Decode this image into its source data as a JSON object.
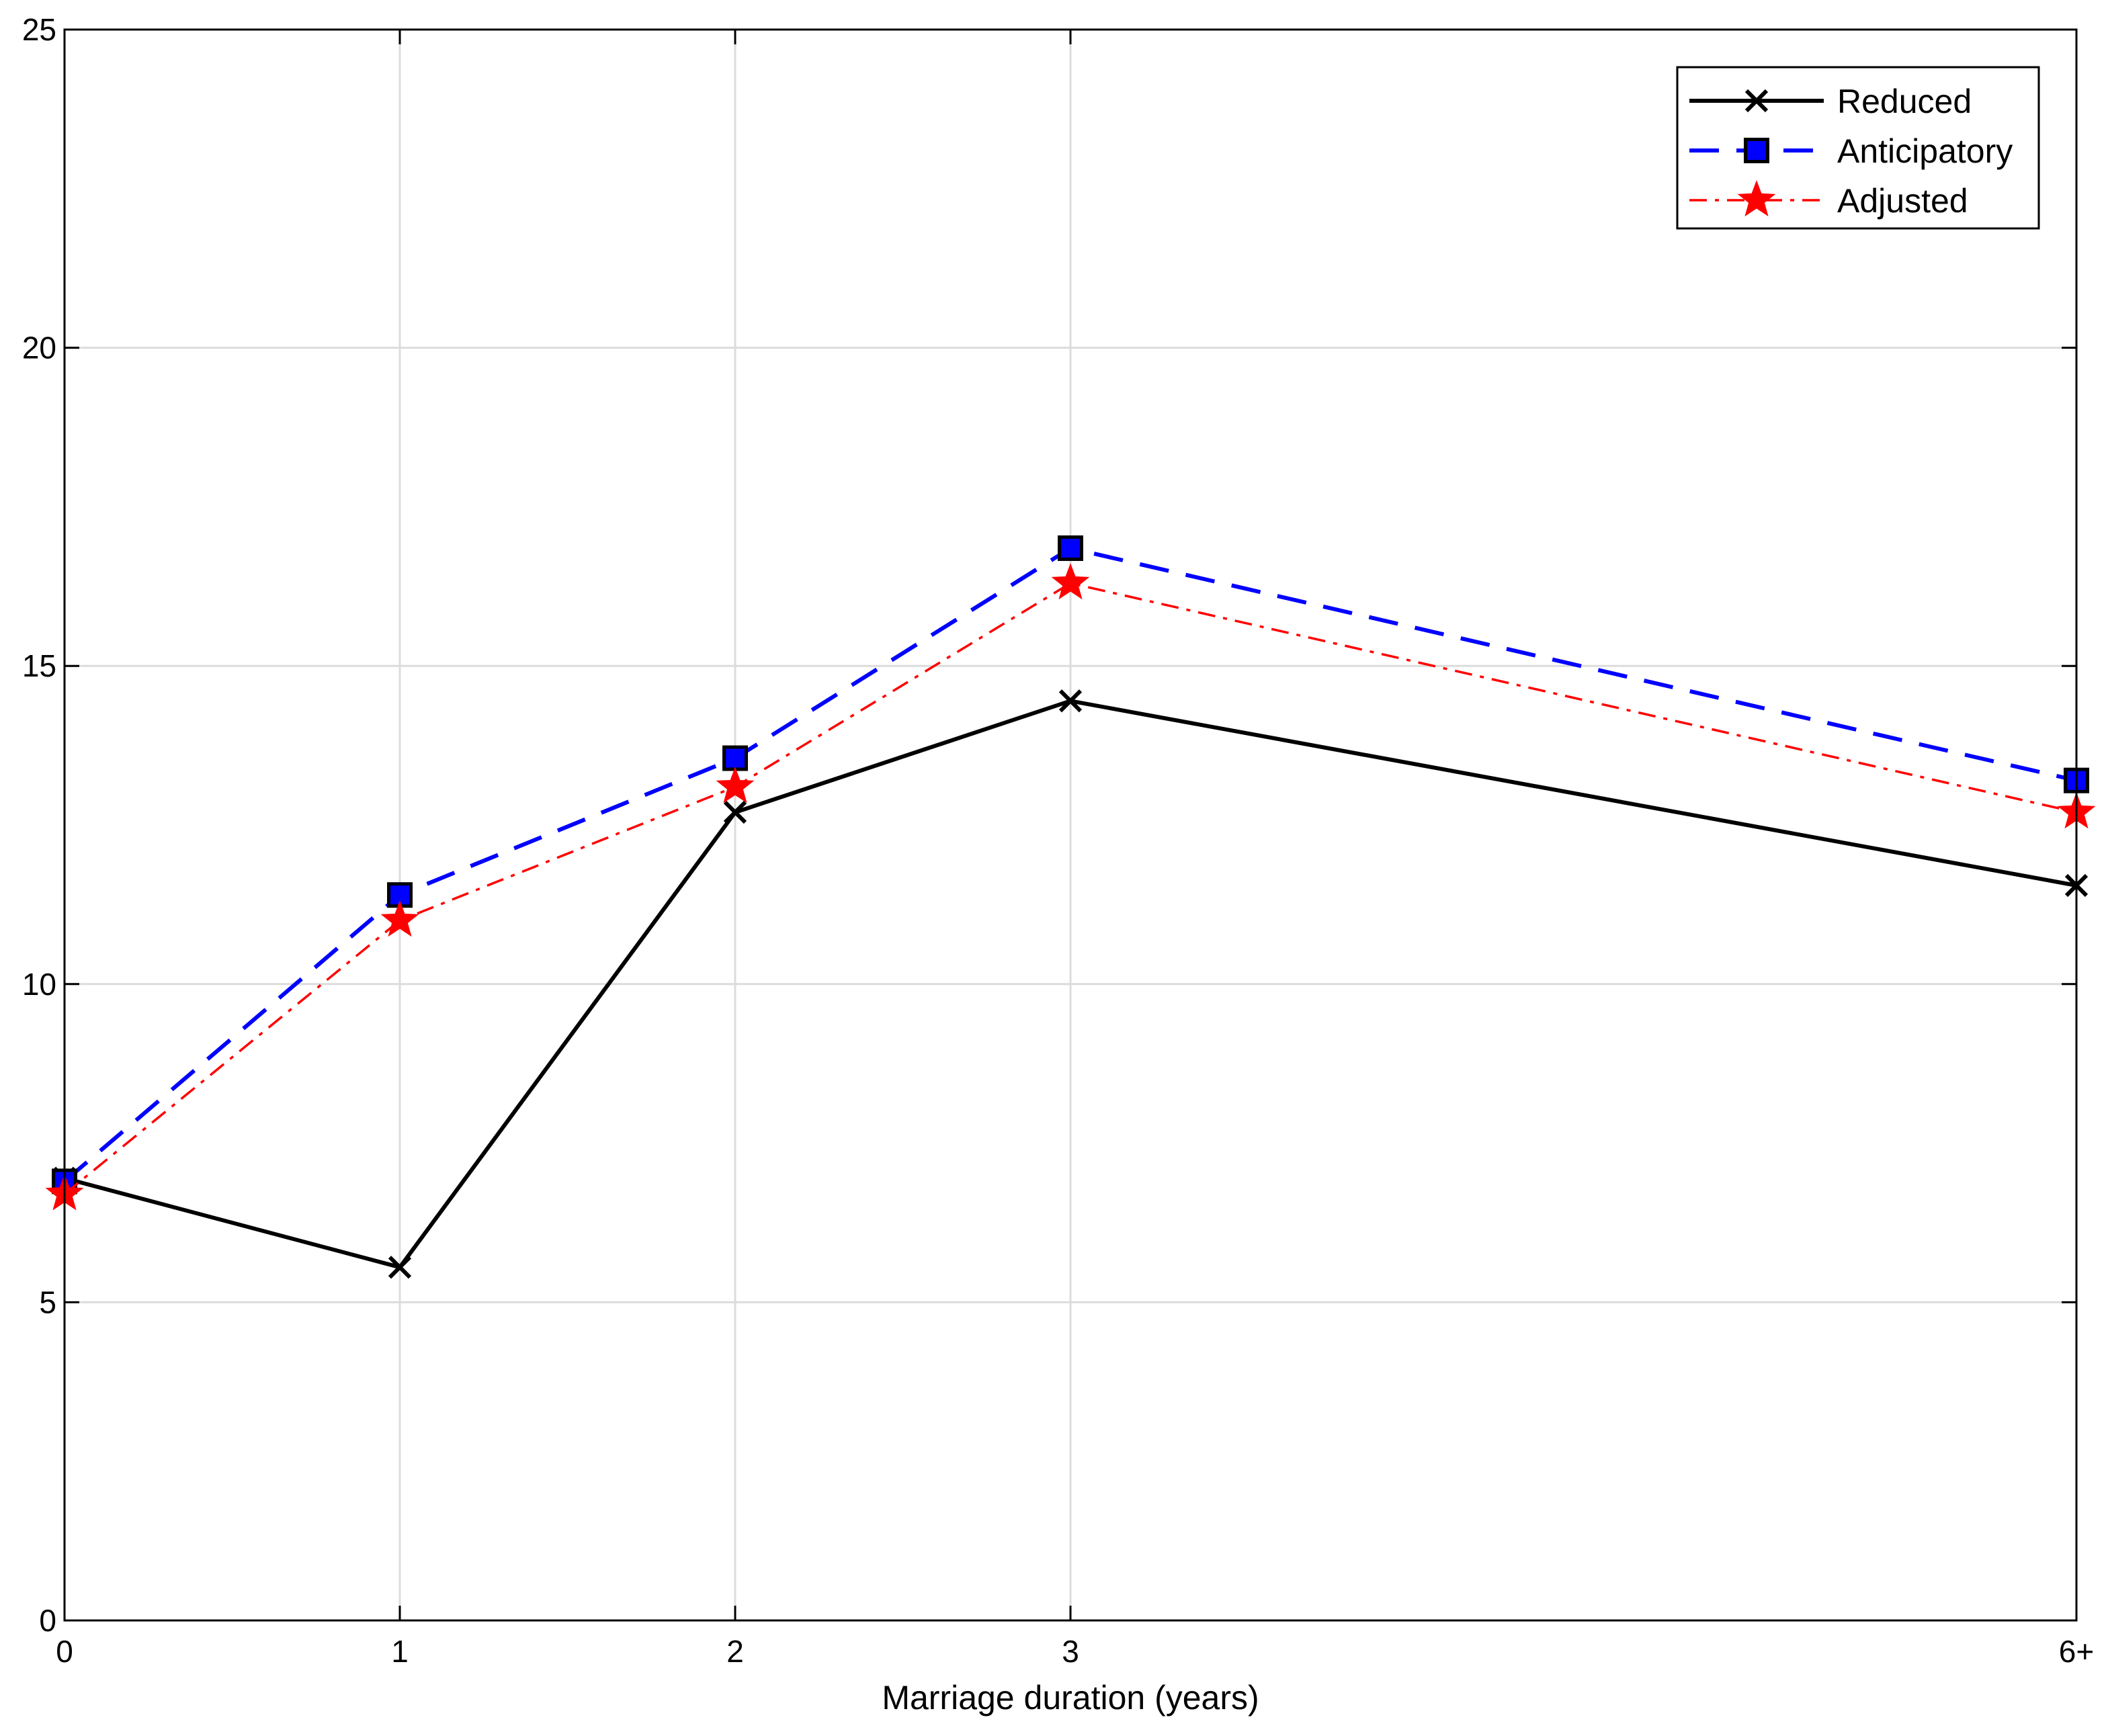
{
  "chart_data": {
    "type": "line",
    "xlabel": "Marriage duration (years)",
    "ylabel": "",
    "categories": [
      "0",
      "1",
      "2",
      "3",
      "6+"
    ],
    "x_positions": [
      0,
      1,
      2,
      3,
      6
    ],
    "xlim": [
      0,
      6
    ],
    "ylim": [
      0,
      25
    ],
    "yticks": [
      0,
      5,
      10,
      15,
      20,
      25
    ],
    "grid": true,
    "legend_position": "top-right",
    "series": [
      {
        "name": "Reduced",
        "values": [
          6.95,
          5.55,
          12.7,
          14.45,
          11.55
        ],
        "color": "#000000",
        "line_style": "solid",
        "marker": "x"
      },
      {
        "name": "Anticipatory",
        "values": [
          6.9,
          11.4,
          13.55,
          16.85,
          13.2
        ],
        "color": "#0000ff",
        "line_style": "dashed",
        "marker": "square"
      },
      {
        "name": "Adjusted",
        "values": [
          6.7,
          11.0,
          13.1,
          16.3,
          12.7
        ],
        "color": "#ff0000",
        "line_style": "dash-dot",
        "marker": "star"
      }
    ]
  }
}
